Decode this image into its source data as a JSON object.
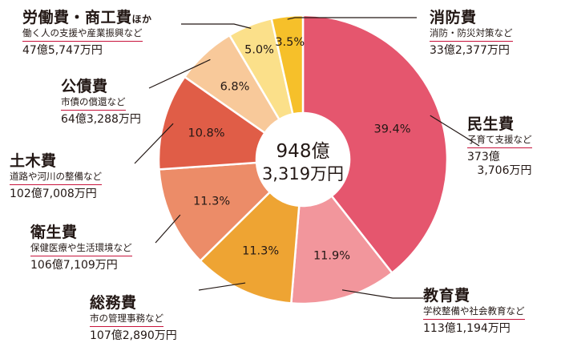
{
  "chart_data": {
    "type": "pie",
    "title": "",
    "total": {
      "line1": "948億",
      "line2": "3,319万円"
    },
    "slices": [
      {
        "key": "minsei",
        "category": "民生費",
        "category_suffix": "",
        "pct_label": "39.4%",
        "value": 39.4,
        "description": "子育て支援など",
        "amount": "373億",
        "amount2": "3,706万円",
        "color": "#e5566e"
      },
      {
        "key": "kyoiku",
        "category": "教育費",
        "category_suffix": "",
        "pct_label": "11.9%",
        "value": 11.9,
        "description": "学校整備や社会教育など",
        "amount": "113億1,194万円",
        "color": "#f2969c"
      },
      {
        "key": "somu",
        "category": "総務費",
        "category_suffix": "",
        "pct_label": "11.3%",
        "value": 11.3,
        "description": "市の管理事務など",
        "amount": "107億2,890万円",
        "color": "#eea433"
      },
      {
        "key": "eisei",
        "category": "衛生費",
        "category_suffix": "",
        "pct_label": "11.3%",
        "value": 11.3,
        "description": "保健医療や生活環境など",
        "amount": "106億7,109万円",
        "color": "#ec8c68"
      },
      {
        "key": "doboku",
        "category": "土木費",
        "category_suffix": "",
        "pct_label": "10.8%",
        "value": 10.8,
        "description": "道路や河川の整備など",
        "amount": "102億7,008万円",
        "color": "#e05d47"
      },
      {
        "key": "kosai",
        "category": "公債費",
        "category_suffix": "",
        "pct_label": "6.8%",
        "value": 6.8,
        "description": "市債の償還など",
        "amount": "64億3,288万円",
        "color": "#f8c99a"
      },
      {
        "key": "rodo",
        "category": "労働費・商工費",
        "category_suffix": "ほか",
        "pct_label": "5.0%",
        "value": 5.0,
        "description": "働く人の支援や産業振興など",
        "amount": "47億5,747万円",
        "color": "#fbe08a"
      },
      {
        "key": "shobo",
        "category": "消防費",
        "category_suffix": "",
        "pct_label": "3.5%",
        "value": 3.5,
        "description": "消防・防災対策など",
        "amount": "33億2,377万円",
        "color": "#f6c02a"
      }
    ]
  }
}
